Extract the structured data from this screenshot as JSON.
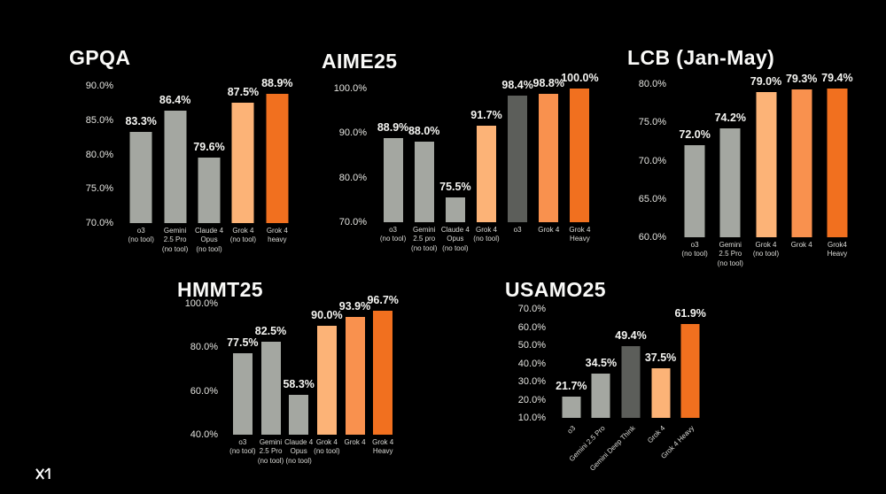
{
  "page": {
    "background": "#000000"
  },
  "logo": {
    "name": "xAI",
    "icon": "xai-logo"
  },
  "colors": {
    "gray": "#A4A7A1",
    "darkgray": "#5C5E5A",
    "orange_light": "#FCB377",
    "orange_mid": "#F9914E",
    "orange_dark": "#F1701F",
    "text": "#FFFFFF"
  },
  "chart_data": [
    {
      "type": "bar",
      "title": "GPQA",
      "ylabel": "",
      "xlabel": "",
      "unit": "%",
      "ylim": [
        70,
        90
      ],
      "yticks": [
        70,
        75,
        80,
        85,
        90
      ],
      "grid": false,
      "legend": "none",
      "rotated_labels": false,
      "bars": [
        {
          "label": "o3 (no tool)",
          "label_lines": [
            "o3",
            "(no tool)"
          ],
          "value": 83.3,
          "color": "gray"
        },
        {
          "label": "Gemini 2.5 Pro (no tool)",
          "label_lines": [
            "Gemini",
            "2.5 Pro",
            "(no tool)"
          ],
          "value": 86.4,
          "color": "gray"
        },
        {
          "label": "Claude 4 Opus (no tool)",
          "label_lines": [
            "Claude 4",
            "Opus",
            "(no tool)"
          ],
          "value": 79.6,
          "color": "gray"
        },
        {
          "label": "Grok 4 (no tool)",
          "label_lines": [
            "Grok 4",
            "(no tool)"
          ],
          "value": 87.5,
          "color": "orange_light"
        },
        {
          "label": "Grok 4 heavy",
          "label_lines": [
            "Grok 4",
            "heavy"
          ],
          "value": 88.9,
          "color": "orange_dark"
        }
      ]
    },
    {
      "type": "bar",
      "title": "AIME25",
      "ylabel": "",
      "xlabel": "",
      "unit": "%",
      "ylim": [
        70,
        100
      ],
      "yticks": [
        70,
        80,
        90,
        100
      ],
      "grid": false,
      "legend": "none",
      "rotated_labels": false,
      "bars": [
        {
          "label": "o3 (no tool)",
          "label_lines": [
            "o3",
            "(no tool)"
          ],
          "value": 88.9,
          "color": "gray"
        },
        {
          "label": "Gemini 2.5 pro (no tool)",
          "label_lines": [
            "Gemini",
            "2.5 pro",
            "(no tool)"
          ],
          "value": 88.0,
          "color": "gray"
        },
        {
          "label": "Claude 4 Opus (no tool)",
          "label_lines": [
            "Claude 4",
            "Opus",
            "(no tool)"
          ],
          "value": 75.5,
          "color": "gray"
        },
        {
          "label": "Grok 4 (no tool)",
          "label_lines": [
            "Grok 4",
            "(no tool)"
          ],
          "value": 91.7,
          "color": "orange_light"
        },
        {
          "label": "o3",
          "label_lines": [
            "o3"
          ],
          "value": 98.4,
          "color": "darkgray"
        },
        {
          "label": "Grok 4",
          "label_lines": [
            "Grok 4"
          ],
          "value": 98.8,
          "color": "orange_mid"
        },
        {
          "label": "Grok 4 Heavy",
          "label_lines": [
            "Grok 4",
            "Heavy"
          ],
          "value": 100.0,
          "color": "orange_dark"
        }
      ]
    },
    {
      "type": "bar",
      "title": "LCB (Jan-May)",
      "ylabel": "",
      "xlabel": "",
      "unit": "%",
      "ylim": [
        60,
        80
      ],
      "yticks": [
        60,
        65,
        70,
        75,
        80
      ],
      "grid": false,
      "legend": "none",
      "rotated_labels": false,
      "bars": [
        {
          "label": "o3 (no tool)",
          "label_lines": [
            "o3",
            "(no tool)"
          ],
          "value": 72.0,
          "color": "gray"
        },
        {
          "label": "Gemini 2.5 Pro (no tool)",
          "label_lines": [
            "Gemini",
            "2.5 Pro",
            "(no tool)"
          ],
          "value": 74.2,
          "color": "gray"
        },
        {
          "label": "Grok 4 (no tool)",
          "label_lines": [
            "Grok 4",
            "(no tool)"
          ],
          "value": 79.0,
          "color": "orange_light"
        },
        {
          "label": "Grok 4",
          "label_lines": [
            "Grok 4"
          ],
          "value": 79.3,
          "color": "orange_mid"
        },
        {
          "label": "Grok4 Heavy",
          "label_lines": [
            "Grok4",
            "Heavy"
          ],
          "value": 79.4,
          "color": "orange_dark"
        }
      ]
    },
    {
      "type": "bar",
      "title": "HMMT25",
      "ylabel": "",
      "xlabel": "",
      "unit": "%",
      "ylim": [
        40,
        100
      ],
      "yticks": [
        40,
        60,
        80,
        100
      ],
      "grid": false,
      "legend": "none",
      "rotated_labels": false,
      "bars": [
        {
          "label": "o3 (no tool)",
          "label_lines": [
            "o3",
            "(no tool)"
          ],
          "value": 77.5,
          "color": "gray"
        },
        {
          "label": "Gemini 2.5 Pro (no tool)",
          "label_lines": [
            "Gemini",
            "2.5 Pro",
            "(no tool)"
          ],
          "value": 82.5,
          "color": "gray"
        },
        {
          "label": "Claude 4 Opus (no tool)",
          "label_lines": [
            "Claude 4",
            "Opus",
            "(no tool)"
          ],
          "value": 58.3,
          "color": "gray"
        },
        {
          "label": "Grok 4 (no tool)",
          "label_lines": [
            "Grok 4",
            "(no tool)"
          ],
          "value": 90.0,
          "color": "orange_light"
        },
        {
          "label": "Grok 4",
          "label_lines": [
            "Grok 4"
          ],
          "value": 93.9,
          "color": "orange_mid"
        },
        {
          "label": "Grok 4 Heavy",
          "label_lines": [
            "Grok 4",
            "Heavy"
          ],
          "value": 96.7,
          "color": "orange_dark"
        }
      ]
    },
    {
      "type": "bar",
      "title": "USAMO25",
      "ylabel": "",
      "xlabel": "",
      "unit": "%",
      "ylim": [
        10,
        70
      ],
      "yticks": [
        10,
        20,
        30,
        40,
        50,
        60,
        70
      ],
      "grid": false,
      "legend": "none",
      "rotated_labels": true,
      "bars": [
        {
          "label": "o3",
          "label_lines": [
            "o3"
          ],
          "value": 21.7,
          "color": "gray"
        },
        {
          "label": "Gemini 2.5 Pro",
          "label_lines": [
            "Gemini 2.5 Pro"
          ],
          "value": 34.5,
          "color": "gray"
        },
        {
          "label": "Gemini Deep Think",
          "label_lines": [
            "Gemini Deep Think"
          ],
          "value": 49.4,
          "color": "darkgray"
        },
        {
          "label": "Grok 4",
          "label_lines": [
            "Grok 4"
          ],
          "value": 37.5,
          "color": "orange_light"
        },
        {
          "label": "Grok 4 Heavy",
          "label_lines": [
            "Grok 4 Heavy"
          ],
          "value": 61.9,
          "color": "orange_dark"
        }
      ]
    }
  ]
}
